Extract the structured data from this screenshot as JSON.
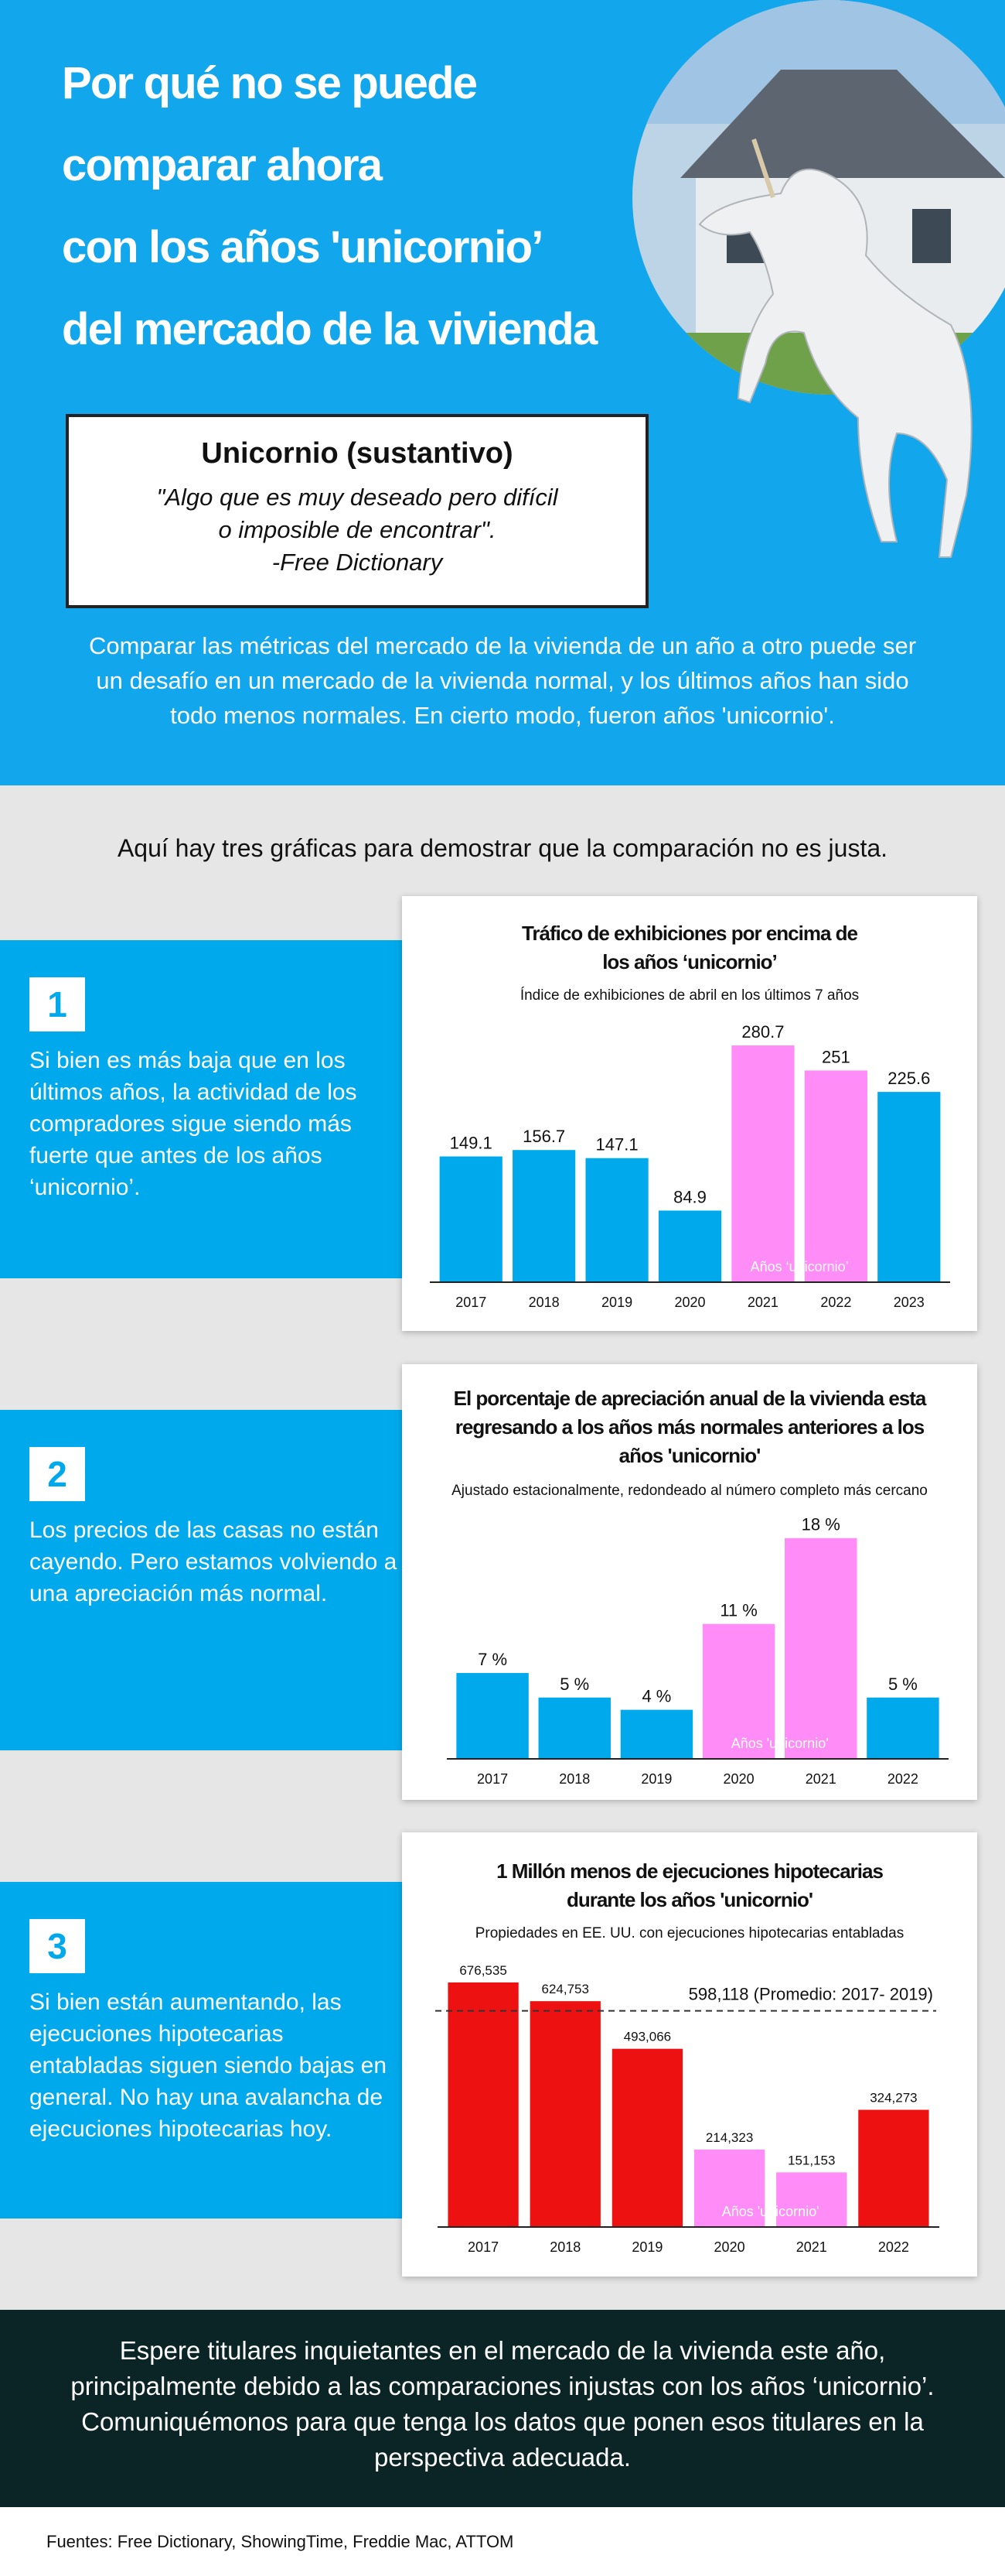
{
  "header": {
    "title_lines": [
      "Por qué no se puede",
      "comparar ahora",
      "con los años 'unicornio’",
      "del mercado de la vivienda"
    ],
    "intro": "Comparar las métricas del mercado de la vivienda de un año a otro puede ser un desafío en un mercado de la vivienda normal, y los últimos años han sido todo menos normales. En cierto modo, fueron años 'unicornio'."
  },
  "definition": {
    "term": "Unicornio (sustantivo)",
    "quote_lines": [
      "\"Algo que es muy deseado pero difícil",
      "o imposible de encontrar\"."
    ],
    "source": "-Free Dictionary"
  },
  "lead": "Aquí hay tres gráficas para demostrar que la comparación no es justa.",
  "sections": [
    {
      "number": "1",
      "text": "Si bien es más baja que en los últimos años, la actividad de los compradores sigue siendo más fuerte que antes de los años ‘unicornio’."
    },
    {
      "number": "2",
      "text": "Los precios de las casas no están cayendo. Pero estamos volviendo a una apreciación más normal."
    },
    {
      "number": "3",
      "text": "Si bien están aumentando, las ejecuciones hipotecarias entabladas siguen siendo bajas en general. No hay una avalancha de ejecuciones hipotecarias hoy."
    }
  ],
  "chart_data": [
    {
      "type": "bar",
      "title": "Tráfico de exhibiciones por encima de los años ‘unicornio’",
      "subtitle": "Índice de exhibiciones de abril en los últimos 7 años",
      "categories": [
        "2017",
        "2018",
        "2019",
        "2020",
        "2021",
        "2022",
        "2023"
      ],
      "values": [
        149.1,
        156.7,
        147.1,
        84.9,
        280.7,
        251,
        225.6
      ],
      "colors": [
        "#00a9ec",
        "#00a9ec",
        "#00a9ec",
        "#00a9ec",
        "#ff8cf7",
        "#ff8cf7",
        "#00a9ec"
      ],
      "annotation": "Años ‘unicornio’",
      "ylim": [
        0,
        300
      ]
    },
    {
      "type": "bar",
      "title": "El porcentaje de apreciación anual de la vivienda esta regresando a los años más normales anteriores a los años 'unicornio'",
      "subtitle": "Ajustado estacionalmente, redondeado al número completo más cercano",
      "categories": [
        "2017",
        "2018",
        "2019",
        "2020",
        "2021",
        "2022"
      ],
      "values": [
        7,
        5,
        4,
        11,
        18,
        5
      ],
      "value_labels": [
        "7 %",
        "5 %",
        "4 %",
        "11 %",
        "18 %",
        "5 %"
      ],
      "colors": [
        "#00a9ec",
        "#00a9ec",
        "#00a9ec",
        "#ff8cf7",
        "#ff8cf7",
        "#00a9ec"
      ],
      "annotation": "Años 'unicornio'",
      "ylim": [
        0,
        20
      ]
    },
    {
      "type": "bar",
      "title": "1 Millón menos de ejecuciones hipotecarias durante los años 'unicornio'",
      "subtitle": "Propiedades en EE. UU. con ejecuciones hipotecarias entabladas",
      "categories": [
        "2017",
        "2018",
        "2019",
        "2020",
        "2021",
        "2022"
      ],
      "values": [
        676535,
        624753,
        493066,
        214323,
        151153,
        324273
      ],
      "value_labels": [
        "676,535",
        "624,753",
        "493,066",
        "214,323",
        "151,153",
        "324,273"
      ],
      "colors": [
        "#ee1111",
        "#ee1111",
        "#ee1111",
        "#ff8cf7",
        "#ff8cf7",
        "#ee1111"
      ],
      "annotation": "Años 'unicornio'",
      "reference": {
        "value": 598118,
        "label": "598,118 (Promedio: 2017- 2019)"
      },
      "ylim": [
        0,
        700000
      ]
    }
  ],
  "footer": "Espere titulares inquietantes en el mercado de la vivienda este año, principalmente debido a las comparaciones injustas con los años ‘unicornio’. Comuniquémonos para que tenga los datos que ponen esos titulares en la perspectiva adecuada.",
  "sources": "Fuentes: Free Dictionary, ShowingTime, Freddie Mac, ATTOM"
}
